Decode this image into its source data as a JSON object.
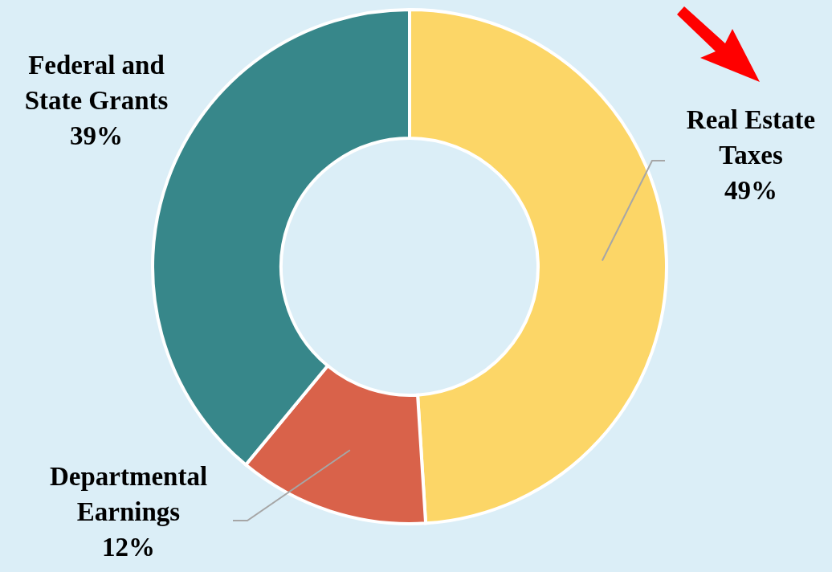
{
  "chart_data": {
    "type": "donut",
    "categories": [
      "Real Estate Taxes",
      "Departmental Earnings",
      "Federal and State Grants"
    ],
    "values": [
      49,
      12,
      39
    ],
    "colors": [
      "#fcd667",
      "#d9624a",
      "#37878a"
    ],
    "value_labels": [
      "49%",
      "12%",
      "39%"
    ]
  }
}
